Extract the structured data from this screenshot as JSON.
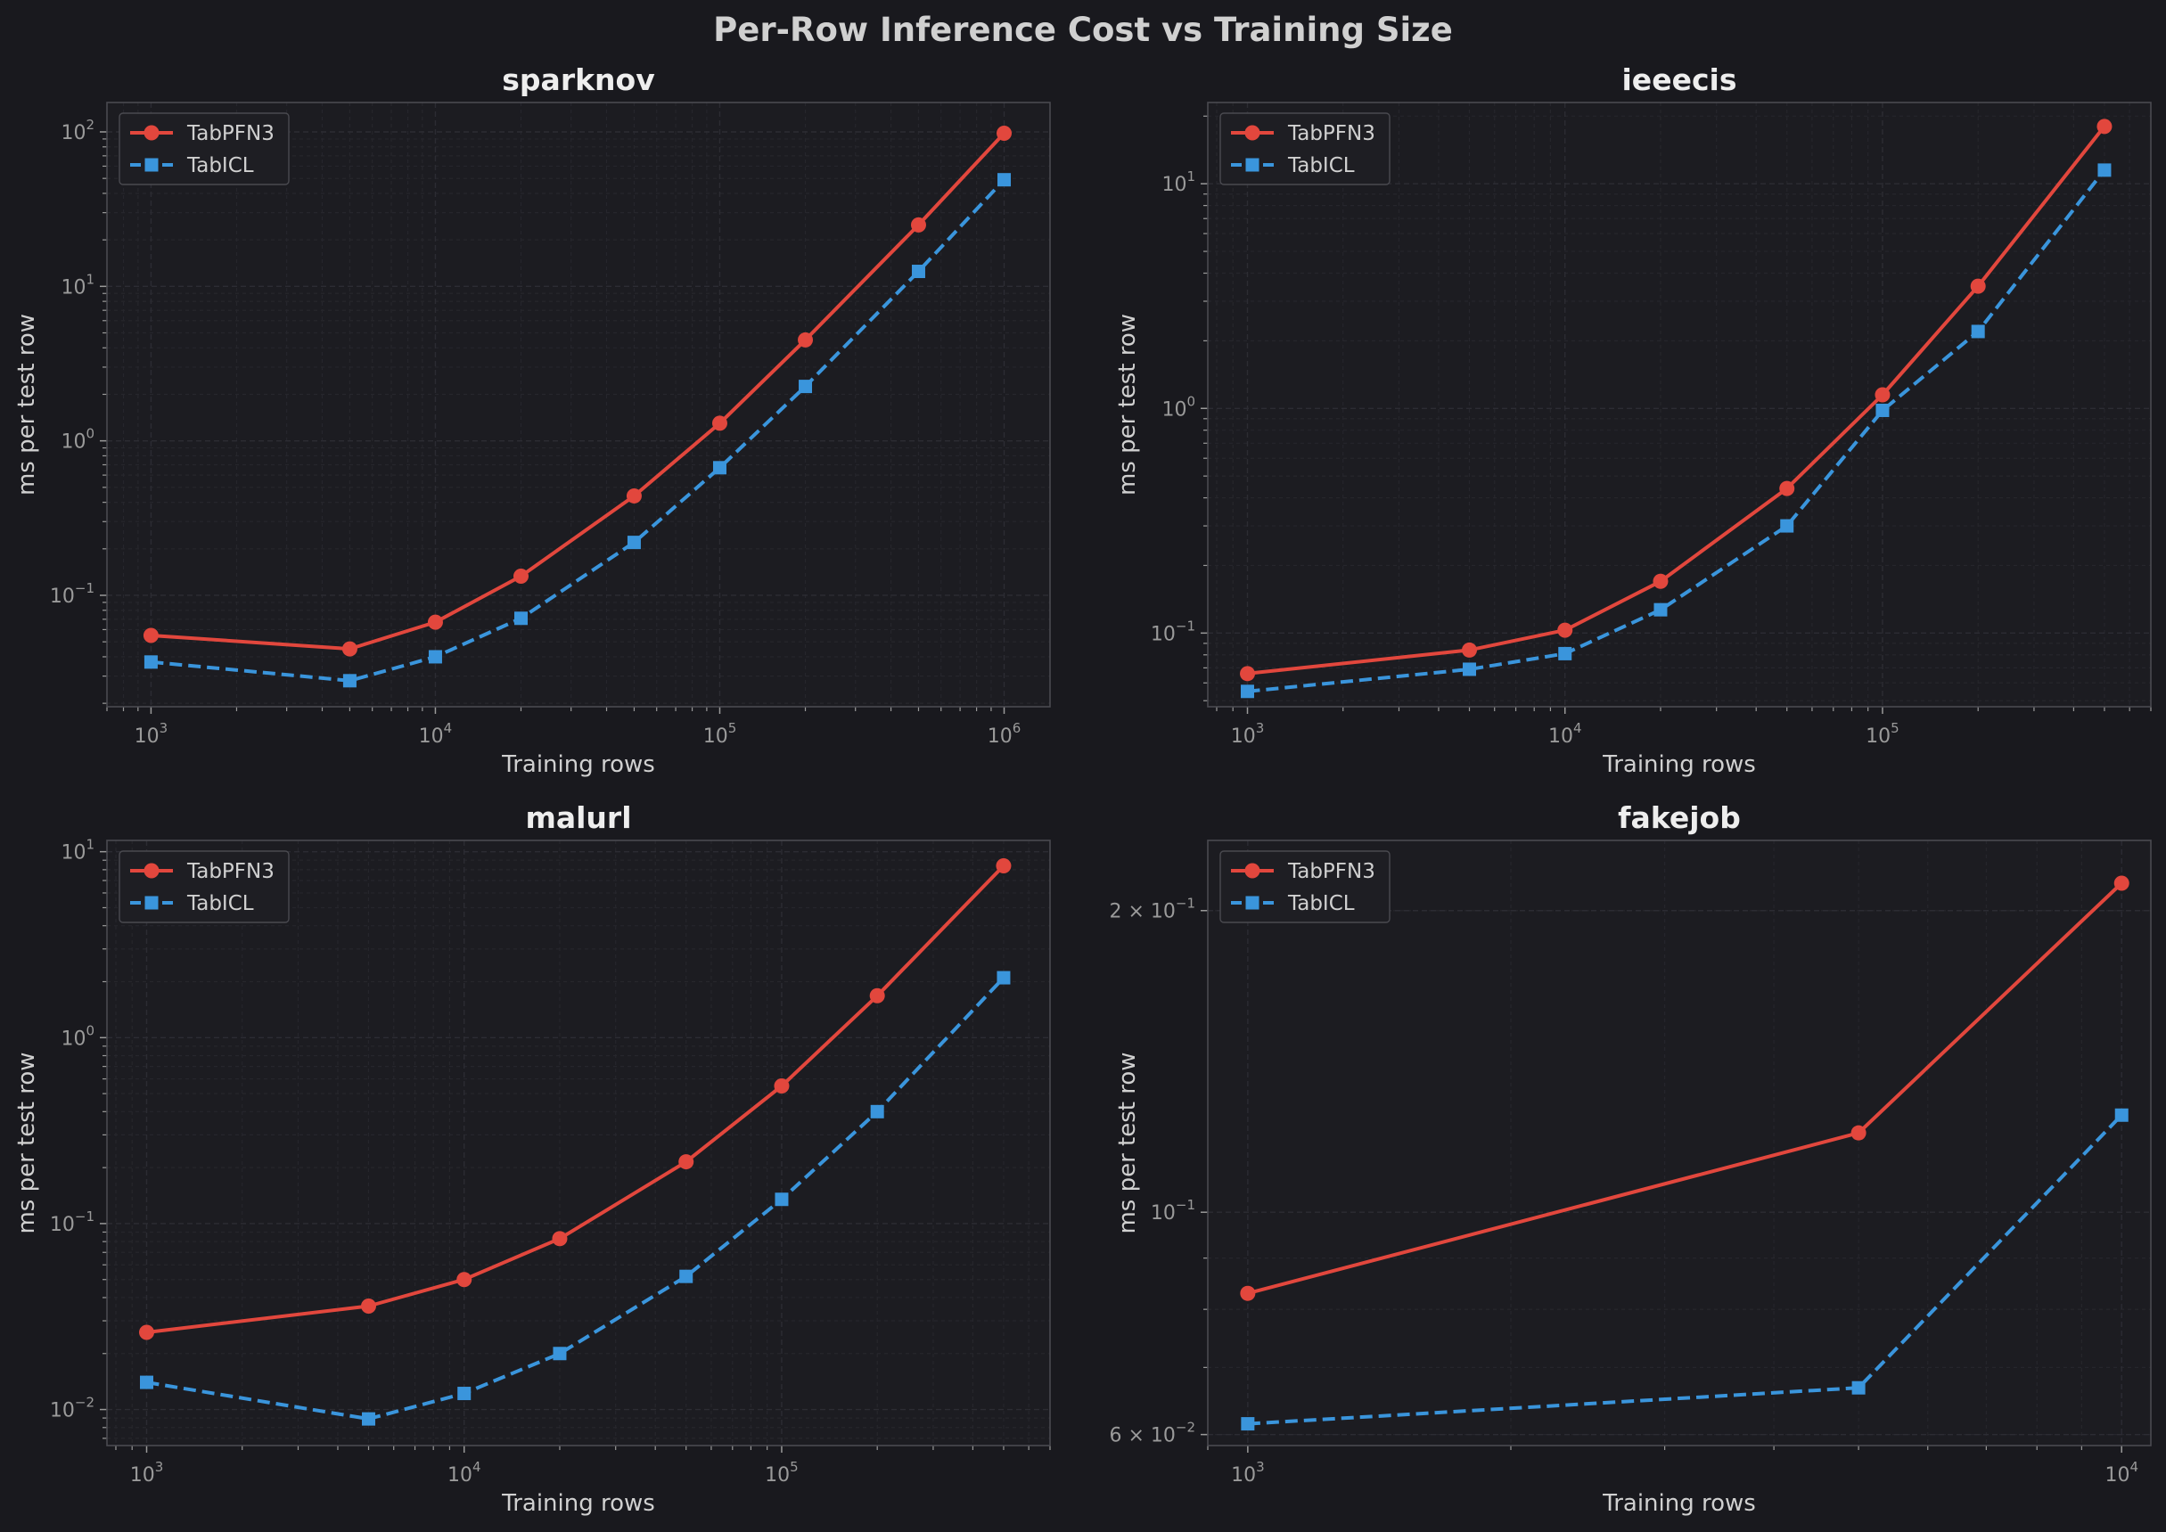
{
  "figure": {
    "title": "Per-Row Inference Cost vs Training Size",
    "background": "#19191e",
    "panel_background": "#1c1c21",
    "text_color": "#d0d0d0",
    "tick_color": "#9a9a9a",
    "spine_color": "#4a4a50"
  },
  "chart_data": [
    {
      "type": "line",
      "title": "sparknov",
      "xlabel": "Training rows",
      "ylabel": "ms per test row",
      "xscale": "log",
      "yscale": "log",
      "xlim": [
        700,
        1450000
      ],
      "ylim": [
        0.019,
        155
      ],
      "xticks": [
        1000,
        10000,
        100000,
        1000000
      ],
      "xtick_labels": [
        [
          "10",
          "3"
        ],
        [
          "10",
          "4"
        ],
        [
          "10",
          "5"
        ],
        [
          "10",
          "6"
        ]
      ],
      "yticks": [
        0.1,
        1,
        10,
        100
      ],
      "ytick_labels": [
        [
          "10",
          "−1"
        ],
        [
          "10",
          "0"
        ],
        [
          "10",
          "1"
        ],
        [
          "10",
          "2"
        ]
      ],
      "grid": true,
      "legend": "upper-left",
      "series": [
        {
          "name": "TabPFN3",
          "color": "#e2473d",
          "marker": "circle",
          "linestyle": "solid",
          "x": [
            1000,
            5000,
            10000,
            20000,
            50000,
            100000,
            200000,
            500000,
            1000000
          ],
          "y": [
            0.055,
            0.045,
            0.067,
            0.133,
            0.44,
            1.3,
            4.5,
            25,
            98
          ]
        },
        {
          "name": "TabICL",
          "color": "#3a95dc",
          "marker": "square",
          "linestyle": "dashed",
          "x": [
            1000,
            5000,
            10000,
            20000,
            50000,
            100000,
            200000,
            500000,
            1000000
          ],
          "y": [
            0.037,
            0.028,
            0.04,
            0.071,
            0.22,
            0.67,
            2.25,
            12.5,
            49
          ]
        }
      ]
    },
    {
      "type": "line",
      "title": "ieeecis",
      "xlabel": "Training rows",
      "ylabel": "ms per test row",
      "xscale": "log",
      "yscale": "log",
      "xlim": [
        750,
        700000
      ],
      "ylim": [
        0.047,
        23
      ],
      "xticks": [
        1000,
        10000,
        100000
      ],
      "xtick_labels": [
        [
          "10",
          "3"
        ],
        [
          "10",
          "4"
        ],
        [
          "10",
          "5"
        ]
      ],
      "yticks": [
        0.1,
        1,
        10
      ],
      "ytick_labels": [
        [
          "10",
          "−1"
        ],
        [
          "10",
          "0"
        ],
        [
          "10",
          "1"
        ]
      ],
      "grid": true,
      "legend": "upper-left",
      "series": [
        {
          "name": "TabPFN3",
          "color": "#e2473d",
          "marker": "circle",
          "linestyle": "solid",
          "x": [
            1000,
            5000,
            10000,
            20000,
            50000,
            100000,
            200000,
            500000
          ],
          "y": [
            0.066,
            0.084,
            0.103,
            0.17,
            0.44,
            1.15,
            3.5,
            18
          ]
        },
        {
          "name": "TabICL",
          "color": "#3a95dc",
          "marker": "square",
          "linestyle": "dashed",
          "x": [
            1000,
            5000,
            10000,
            20000,
            50000,
            100000,
            200000,
            500000
          ],
          "y": [
            0.055,
            0.069,
            0.081,
            0.127,
            0.3,
            0.98,
            2.2,
            11.5
          ]
        }
      ]
    },
    {
      "type": "line",
      "title": "malurl",
      "xlabel": "Training rows",
      "ylabel": "ms per test row",
      "xscale": "log",
      "yscale": "log",
      "xlim": [
        750,
        700000
      ],
      "ylim": [
        0.0064,
        11.5
      ],
      "xticks": [
        1000,
        10000,
        100000
      ],
      "xtick_labels": [
        [
          "10",
          "3"
        ],
        [
          "10",
          "4"
        ],
        [
          "10",
          "5"
        ]
      ],
      "yticks": [
        0.01,
        0.1,
        1,
        10
      ],
      "ytick_labels": [
        [
          "10",
          "−2"
        ],
        [
          "10",
          "−1"
        ],
        [
          "10",
          "0"
        ],
        [
          "10",
          "1"
        ]
      ],
      "grid": true,
      "legend": "upper-left",
      "series": [
        {
          "name": "TabPFN3",
          "color": "#e2473d",
          "marker": "circle",
          "linestyle": "solid",
          "x": [
            1000,
            5000,
            10000,
            20000,
            50000,
            100000,
            200000,
            500000
          ],
          "y": [
            0.026,
            0.036,
            0.05,
            0.083,
            0.215,
            0.55,
            1.68,
            8.4
          ]
        },
        {
          "name": "TabICL",
          "color": "#3a95dc",
          "marker": "square",
          "linestyle": "dashed",
          "x": [
            1000,
            5000,
            10000,
            20000,
            50000,
            100000,
            200000,
            500000
          ],
          "y": [
            0.014,
            0.0089,
            0.0122,
            0.02,
            0.052,
            0.135,
            0.4,
            2.1
          ]
        }
      ]
    },
    {
      "type": "line",
      "title": "fakejob",
      "xlabel": "Training rows",
      "ylabel": "ms per test row",
      "xscale": "log",
      "yscale": "log",
      "xlim": [
        900,
        10800
      ],
      "ylim": [
        0.0585,
        0.235
      ],
      "xticks": [
        1000,
        10000
      ],
      "xtick_labels": [
        [
          "10",
          "3"
        ],
        [
          "10",
          "4"
        ]
      ],
      "yticks": [
        0.06,
        0.1,
        0.2
      ],
      "ytick_labels": [
        [
          "6 × 10",
          "−2"
        ],
        [
          "10",
          "−1"
        ],
        [
          "2 × 10",
          "−1"
        ]
      ],
      "grid": true,
      "legend": "upper-left",
      "series": [
        {
          "name": "TabPFN3",
          "color": "#e2473d",
          "marker": "circle",
          "linestyle": "solid",
          "x": [
            1000,
            5000,
            10000
          ],
          "y": [
            0.083,
            0.12,
            0.213
          ]
        },
        {
          "name": "TabICL",
          "color": "#3a95dc",
          "marker": "square",
          "linestyle": "dashed",
          "x": [
            1000,
            5000,
            10000
          ],
          "y": [
            0.0615,
            0.0668,
            0.125
          ]
        }
      ]
    }
  ]
}
